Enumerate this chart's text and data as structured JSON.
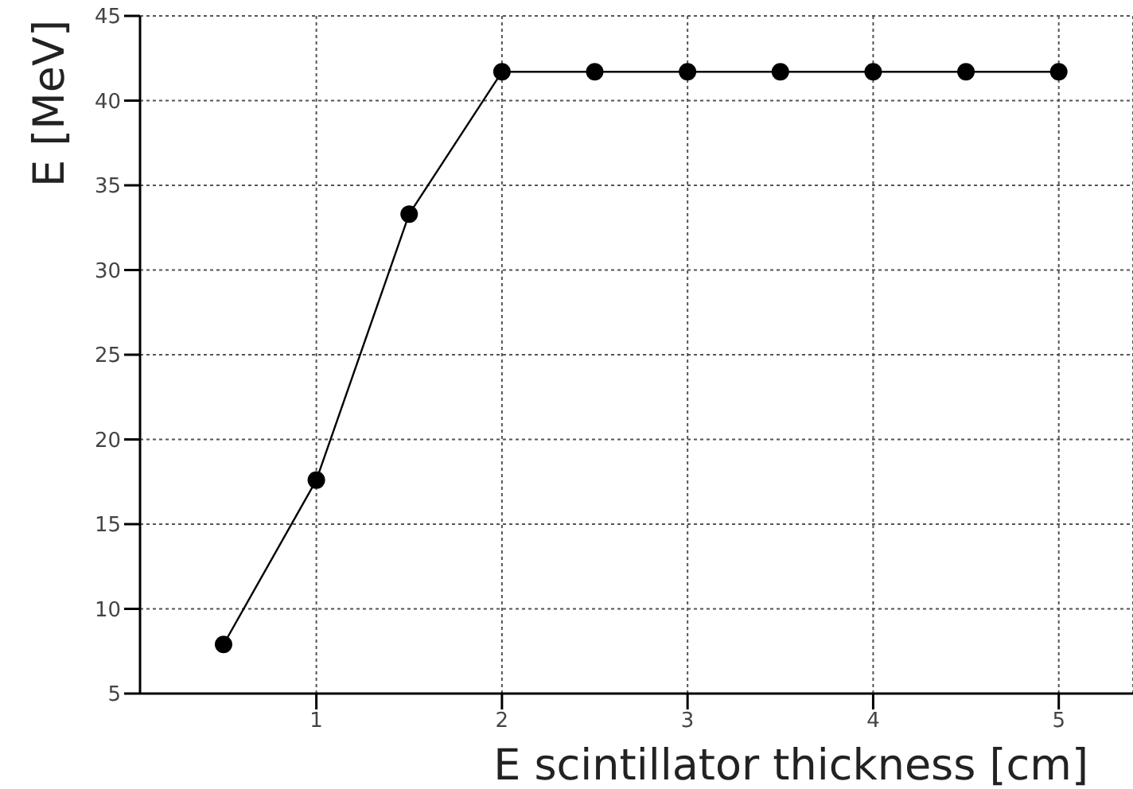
{
  "chart_data": {
    "type": "line",
    "xlabel": "E scintillator thickness [cm]",
    "ylabel": "E [MeV]",
    "x": [
      0.5,
      1,
      1.5,
      2,
      2.5,
      3,
      3.5,
      4,
      4.5,
      5
    ],
    "series": [
      {
        "color": "#000000",
        "values": [
          7.9,
          17.6,
          33.3,
          41.7,
          41.7,
          41.7,
          41.7,
          41.7,
          41.7,
          41.7
        ]
      }
    ],
    "xlim": [
      0.05,
      5.4
    ],
    "xticks": [
      1,
      2,
      3,
      4,
      5
    ],
    "ylim": [
      5,
      45
    ],
    "yticks": [
      5,
      10,
      15,
      20,
      25,
      30,
      35,
      40,
      45
    ],
    "grid": true,
    "marker": "circle",
    "line_style": "solid",
    "legend": false
  }
}
